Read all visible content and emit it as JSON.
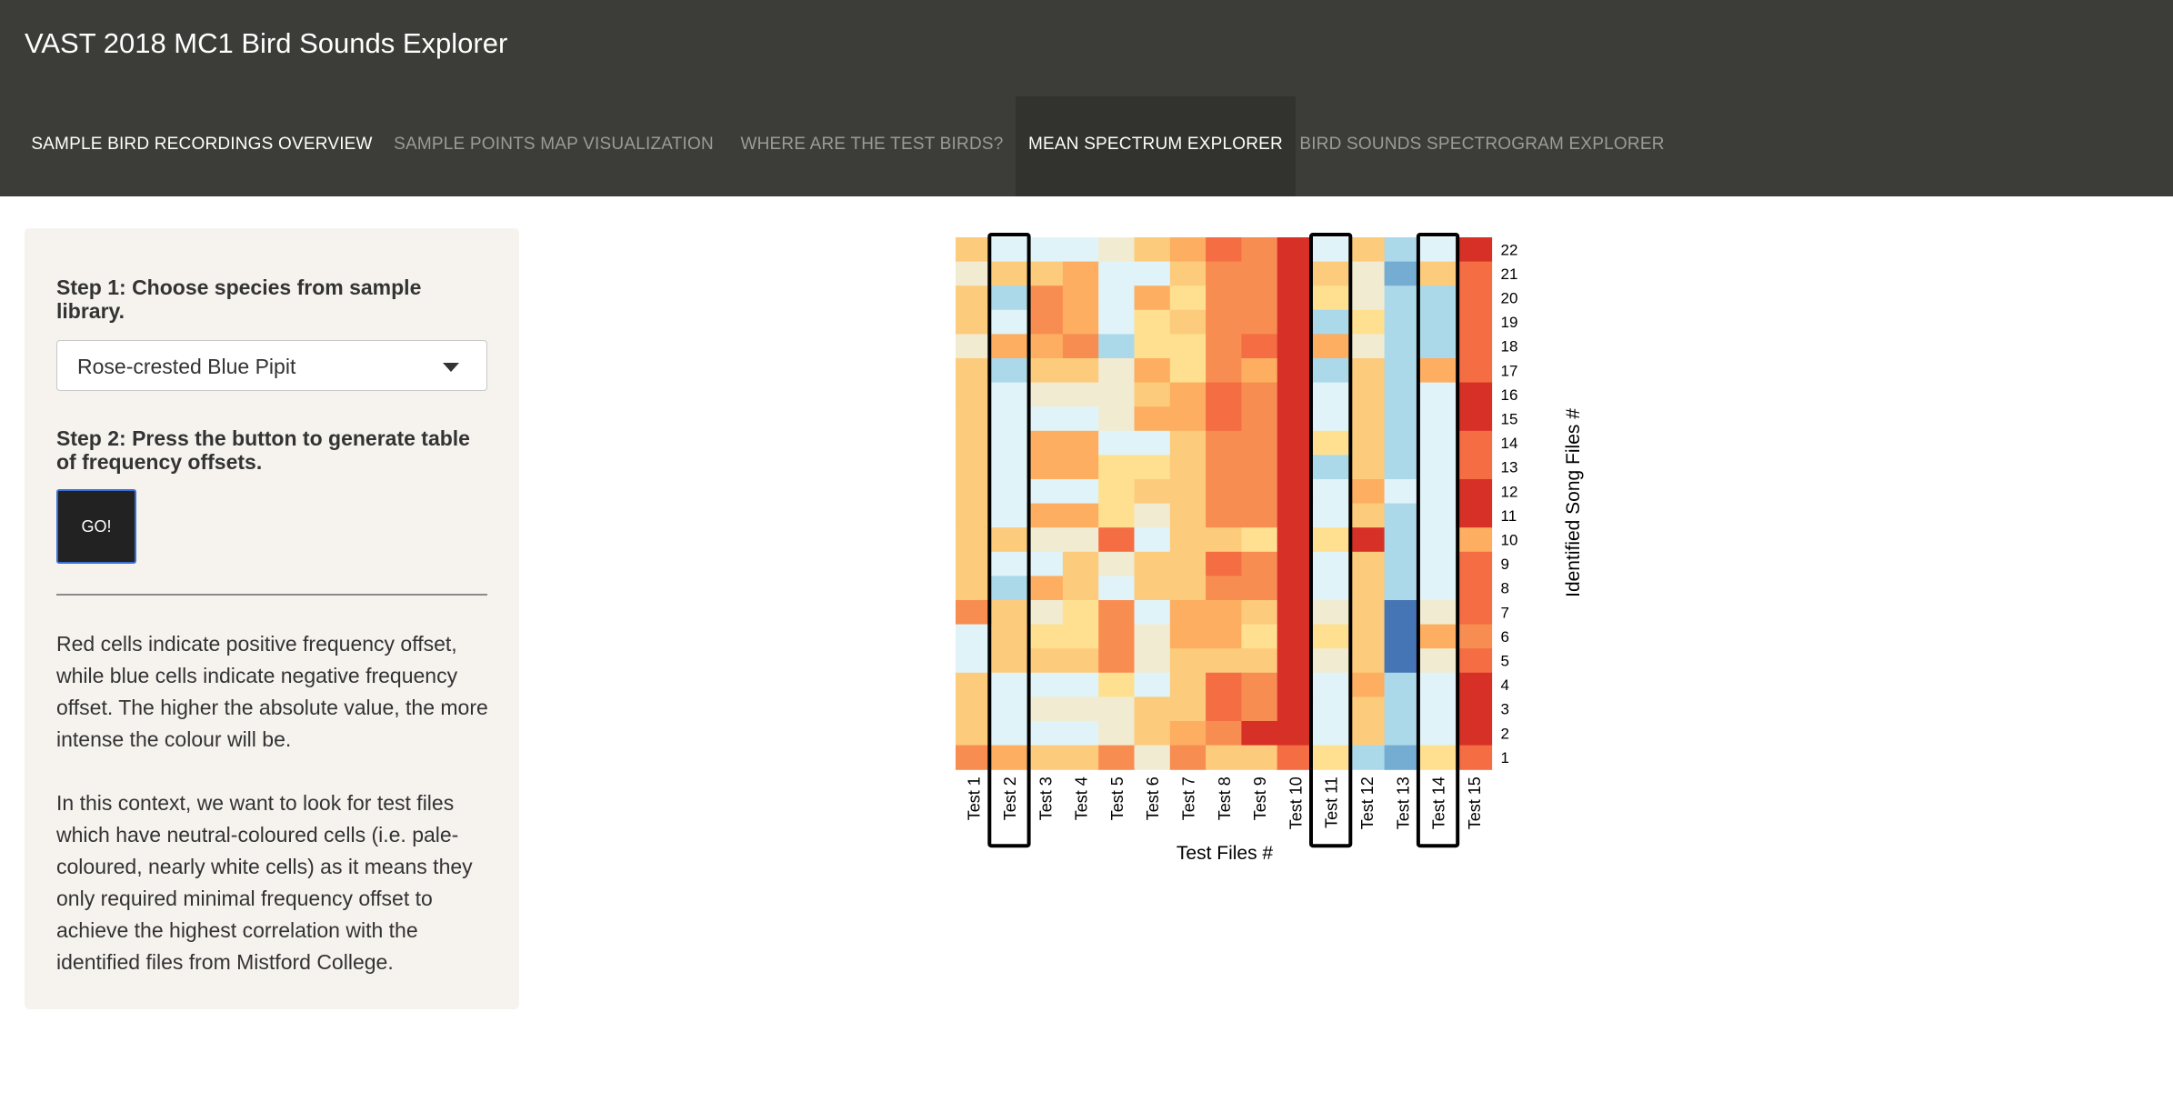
{
  "app": {
    "title": "VAST 2018 MC1 Bird Sounds Explorer"
  },
  "nav": {
    "tabs": [
      {
        "label": "SAMPLE BIRD RECORDINGS OVERVIEW",
        "state": "bright"
      },
      {
        "label": "SAMPLE POINTS MAP VISUALIZATION",
        "state": "dim"
      },
      {
        "label": "WHERE ARE THE TEST BIRDS?",
        "state": "dim"
      },
      {
        "label": "MEAN SPECTRUM EXPLORER",
        "state": "active"
      },
      {
        "label": "BIRD SOUNDS SPECTROGRAM EXPLORER",
        "state": "dim"
      }
    ]
  },
  "sidebar": {
    "step1": "Step 1: Choose species from sample library.",
    "species_select": {
      "value": "Rose-crested Blue Pipit"
    },
    "step2": "Step 2: Press the button to generate table of frequency offsets.",
    "go_button": "GO!",
    "help_text_1": "Red cells indicate positive frequency offset, while blue cells indicate negative frequency offset. The higher the absolute value, the more intense the colour will be.",
    "help_text_2": "In this context, we want to look for test files which have neutral-coloured cells (i.e. pale-coloured, nearly white cells) as it means they only required minimal frequency offset to achieve the highest correlation with the identified files from Mistford College."
  },
  "chart_data": {
    "type": "heatmap",
    "xlabel": "Test Files #",
    "ylabel": "Identified Song Files #",
    "x_labels": [
      "Test 1",
      "Test 2",
      "Test 3",
      "Test 4",
      "Test 5",
      "Test 6",
      "Test 7",
      "Test 8",
      "Test 9",
      "Test 10",
      "Test 11",
      "Test 12",
      "Test 13",
      "Test 14",
      "Test 15"
    ],
    "y_labels": [
      "22",
      "21",
      "20",
      "19",
      "18",
      "17",
      "16",
      "15",
      "14",
      "13",
      "12",
      "11",
      "10",
      "9",
      "8",
      "7",
      "6",
      "5",
      "4",
      "3",
      "2",
      "1"
    ],
    "value_scale": "diverging: negative = blue, 0 = pale/white, positive = red",
    "highlighted_columns": [
      "Test 2",
      "Test 11",
      "Test 14"
    ],
    "color_map": {
      "-4": "#4575b4",
      "-3": "#74add1",
      "-2": "#abd9e9",
      "-1": "#e0f3f8",
      "0": "#f1ecd1",
      "1": "#fee090",
      "2": "#fdcb7c",
      "3": "#fdae61",
      "4": "#f88d52",
      "5": "#f46d43",
      "6": "#d73027"
    },
    "rows": [
      [
        2,
        -1,
        -1,
        -1,
        0,
        2,
        3,
        5,
        4,
        6,
        -1,
        2,
        -2,
        -1,
        6
      ],
      [
        0,
        2,
        2,
        3,
        -1,
        -1,
        2,
        4,
        4,
        6,
        2,
        0,
        -3,
        2,
        5
      ],
      [
        2,
        -2,
        4,
        3,
        -1,
        3,
        1,
        4,
        4,
        6,
        1,
        0,
        -2,
        -2,
        5
      ],
      [
        2,
        -1,
        4,
        3,
        -1,
        1,
        2,
        4,
        4,
        6,
        -2,
        1,
        -2,
        -2,
        5
      ],
      [
        0,
        3,
        3,
        4,
        -2,
        1,
        1,
        4,
        5,
        6,
        3,
        0,
        -2,
        -2,
        5
      ],
      [
        2,
        -2,
        2,
        2,
        0,
        3,
        1,
        4,
        3,
        6,
        -2,
        2,
        -2,
        3,
        5
      ],
      [
        2,
        -1,
        0,
        0,
        0,
        2,
        3,
        5,
        4,
        6,
        -1,
        2,
        -2,
        -1,
        6
      ],
      [
        2,
        -1,
        -1,
        -1,
        0,
        3,
        3,
        5,
        4,
        6,
        -1,
        2,
        -2,
        -1,
        6
      ],
      [
        2,
        -1,
        3,
        3,
        -1,
        -1,
        2,
        4,
        4,
        6,
        1,
        2,
        -2,
        -1,
        5
      ],
      [
        2,
        -1,
        3,
        3,
        1,
        1,
        2,
        4,
        4,
        6,
        -2,
        2,
        -2,
        -1,
        5
      ],
      [
        2,
        -1,
        -1,
        -1,
        1,
        2,
        2,
        4,
        4,
        6,
        -1,
        3,
        -1,
        -1,
        6
      ],
      [
        2,
        -1,
        3,
        3,
        1,
        0,
        2,
        4,
        4,
        6,
        -1,
        2,
        -2,
        -1,
        6
      ],
      [
        2,
        2,
        0,
        0,
        5,
        -1,
        2,
        2,
        1,
        6,
        1,
        6,
        -2,
        -1,
        3
      ],
      [
        2,
        -1,
        -1,
        2,
        0,
        2,
        2,
        5,
        4,
        6,
        -1,
        2,
        -2,
        -1,
        5
      ],
      [
        2,
        -2,
        3,
        2,
        -1,
        2,
        2,
        4,
        4,
        6,
        -1,
        2,
        -2,
        -1,
        5
      ],
      [
        4,
        2,
        0,
        1,
        4,
        -1,
        3,
        3,
        2,
        6,
        0,
        2,
        -4,
        0,
        5
      ],
      [
        -1,
        2,
        1,
        1,
        4,
        0,
        3,
        3,
        1,
        6,
        1,
        2,
        -4,
        3,
        4
      ],
      [
        -1,
        2,
        2,
        2,
        4,
        0,
        2,
        2,
        2,
        6,
        0,
        2,
        -4,
        0,
        5
      ],
      [
        2,
        -1,
        -1,
        -1,
        1,
        -1,
        2,
        5,
        4,
        6,
        -1,
        3,
        -2,
        -1,
        6
      ],
      [
        2,
        -1,
        0,
        0,
        0,
        2,
        2,
        5,
        4,
        6,
        -1,
        2,
        -2,
        -1,
        6
      ],
      [
        2,
        -1,
        -1,
        -1,
        0,
        2,
        3,
        4,
        6,
        6,
        -1,
        2,
        -2,
        -1,
        6
      ],
      [
        4,
        3,
        2,
        2,
        4,
        0,
        4,
        2,
        2,
        5,
        1,
        -2,
        -3,
        1,
        5
      ]
    ]
  }
}
